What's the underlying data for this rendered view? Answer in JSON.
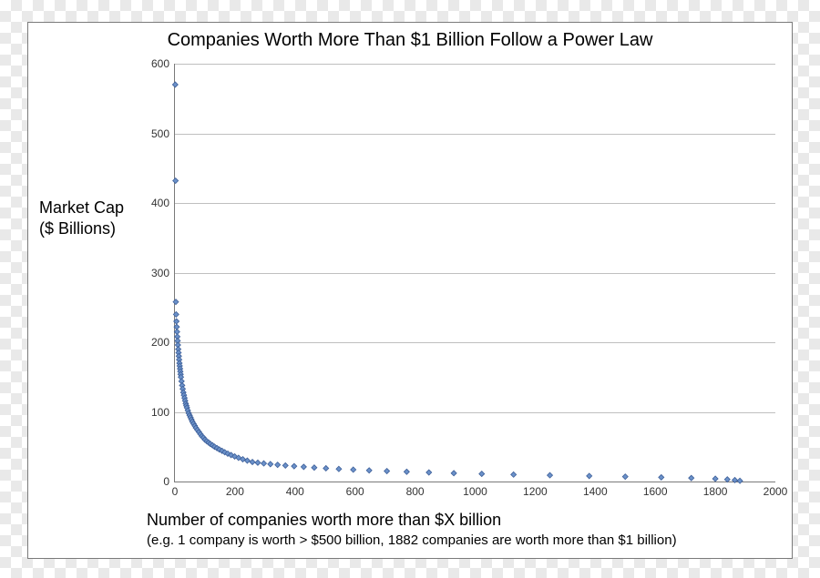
{
  "chart": {
    "type": "scatter",
    "title": "Companies Worth More Than $1 Billion Follow a Power Law",
    "title_fontsize": 20,
    "ylabel_line1": "Market Cap",
    "ylabel_line2": "($ Billions)",
    "ylabel_fontsize": 18,
    "xlabel_main": "Number of companies worth more than $X billion",
    "xlabel_sub": "(e.g. 1 company is worth > $500 billion, 1882 companies are worth more than $1 billion)",
    "xlabel_fontsize": 18,
    "xlabel_sub_fontsize": 15,
    "background_color": "#ffffff",
    "border_color": "#7a7a7a",
    "grid_color": "#bfbfbf",
    "axis_color": "#7a7a7a",
    "tick_font_color": "#333333",
    "tick_fontsize": 12,
    "marker_fill": "#6b91c9",
    "marker_stroke": "#3d5f99",
    "marker_shape": "diamond",
    "marker_size": 6,
    "xlim": [
      0,
      2000
    ],
    "ylim": [
      0,
      600
    ],
    "xtick_step": 200,
    "ytick_step": 100,
    "xticks": [
      0,
      200,
      400,
      600,
      800,
      1000,
      1200,
      1400,
      1600,
      1800,
      2000
    ],
    "yticks": [
      0,
      100,
      200,
      300,
      400,
      500,
      600
    ],
    "data": [
      [
        1,
        570
      ],
      [
        2,
        432
      ],
      [
        3,
        258
      ],
      [
        4,
        240
      ],
      [
        5,
        230
      ],
      [
        6,
        222
      ],
      [
        7,
        215
      ],
      [
        8,
        208
      ],
      [
        9,
        202
      ],
      [
        10,
        196
      ],
      [
        11,
        190
      ],
      [
        12,
        185
      ],
      [
        13,
        180
      ],
      [
        14,
        175
      ],
      [
        15,
        170
      ],
      [
        16,
        166
      ],
      [
        17,
        162
      ],
      [
        18,
        158
      ],
      [
        19,
        154
      ],
      [
        20,
        150
      ],
      [
        22,
        144
      ],
      [
        24,
        138
      ],
      [
        26,
        133
      ],
      [
        28,
        128
      ],
      [
        30,
        124
      ],
      [
        32,
        120
      ],
      [
        34,
        116
      ],
      [
        36,
        112
      ],
      [
        38,
        109
      ],
      [
        40,
        106
      ],
      [
        43,
        102
      ],
      [
        46,
        98
      ],
      [
        49,
        95
      ],
      [
        52,
        92
      ],
      [
        55,
        89
      ],
      [
        58,
        86
      ],
      [
        62,
        83
      ],
      [
        66,
        80
      ],
      [
        70,
        77
      ],
      [
        75,
        74
      ],
      [
        80,
        71
      ],
      [
        85,
        68
      ],
      [
        90,
        65
      ],
      [
        95,
        63
      ],
      [
        100,
        60
      ],
      [
        106,
        58
      ],
      [
        112,
        56
      ],
      [
        118,
        54
      ],
      [
        125,
        52
      ],
      [
        132,
        50
      ],
      [
        140,
        48
      ],
      [
        148,
        46
      ],
      [
        157,
        44
      ],
      [
        166,
        42
      ],
      [
        176,
        40
      ],
      [
        187,
        38
      ],
      [
        199,
        36
      ],
      [
        212,
        34
      ],
      [
        226,
        32
      ],
      [
        241,
        30
      ],
      [
        258,
        28
      ],
      [
        276,
        27
      ],
      [
        296,
        26
      ],
      [
        318,
        25
      ],
      [
        342,
        24
      ],
      [
        368,
        23
      ],
      [
        397,
        22
      ],
      [
        429,
        21
      ],
      [
        464,
        20
      ],
      [
        503,
        19
      ],
      [
        546,
        18
      ],
      [
        594,
        17
      ],
      [
        647,
        16
      ],
      [
        706,
        15
      ],
      [
        772,
        14
      ],
      [
        846,
        13
      ],
      [
        929,
        12
      ],
      [
        1022,
        11
      ],
      [
        1128,
        10
      ],
      [
        1249,
        9
      ],
      [
        1380,
        8
      ],
      [
        1500,
        7
      ],
      [
        1620,
        6
      ],
      [
        1720,
        5
      ],
      [
        1800,
        4
      ],
      [
        1840,
        3
      ],
      [
        1865,
        2
      ],
      [
        1882,
        1
      ]
    ]
  }
}
